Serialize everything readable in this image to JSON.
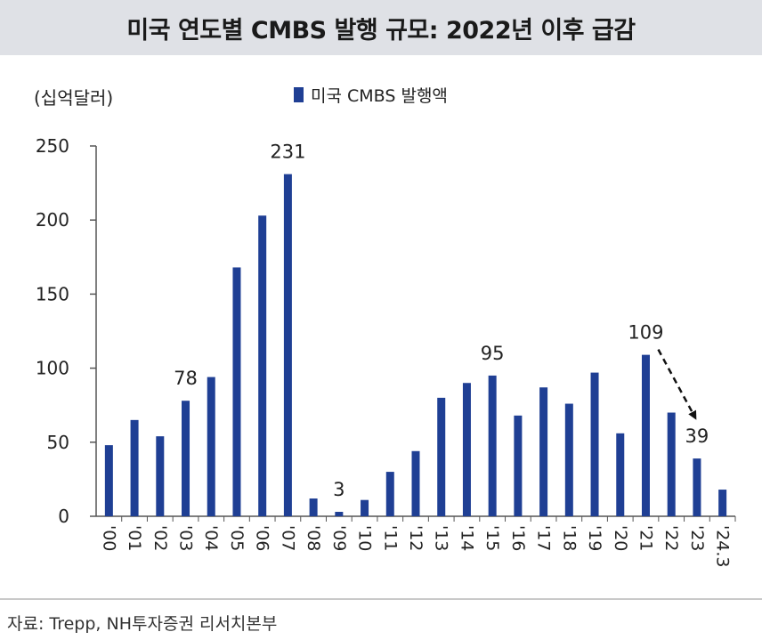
{
  "title": "미국 연도별 CMBS 발행 규모: 2022년 이후 급감",
  "source": "자료: Trepp, NH투자증권 리서치본부",
  "chart_data": {
    "type": "bar",
    "unit_label": "(십억달러)",
    "legend": "미국 CMBS 발행액",
    "bar_color": "#1f3f94",
    "categories": [
      "'00",
      "'01",
      "'02",
      "'03",
      "'04",
      "'05",
      "'06",
      "'07",
      "'08",
      "'09",
      "'10",
      "'11",
      "'12",
      "'13",
      "'14",
      "'15",
      "'16",
      "'17",
      "'18",
      "'19",
      "'20",
      "'21",
      "'22",
      "'23",
      "'24.3"
    ],
    "values": [
      48,
      65,
      54,
      78,
      94,
      168,
      203,
      231,
      12,
      3,
      11,
      30,
      44,
      80,
      90,
      95,
      68,
      87,
      76,
      97,
      56,
      109,
      70,
      39,
      18
    ],
    "data_labels": {
      "3": "78",
      "7": "231",
      "9": "3",
      "15": "95",
      "21": "109",
      "23": "39"
    },
    "ylim": [
      0,
      250
    ],
    "yticks": [
      0,
      50,
      100,
      150,
      200,
      250
    ],
    "grid": false,
    "annotations": [
      {
        "type": "dashed-arrow",
        "from": "'21",
        "to": "'23"
      }
    ]
  }
}
